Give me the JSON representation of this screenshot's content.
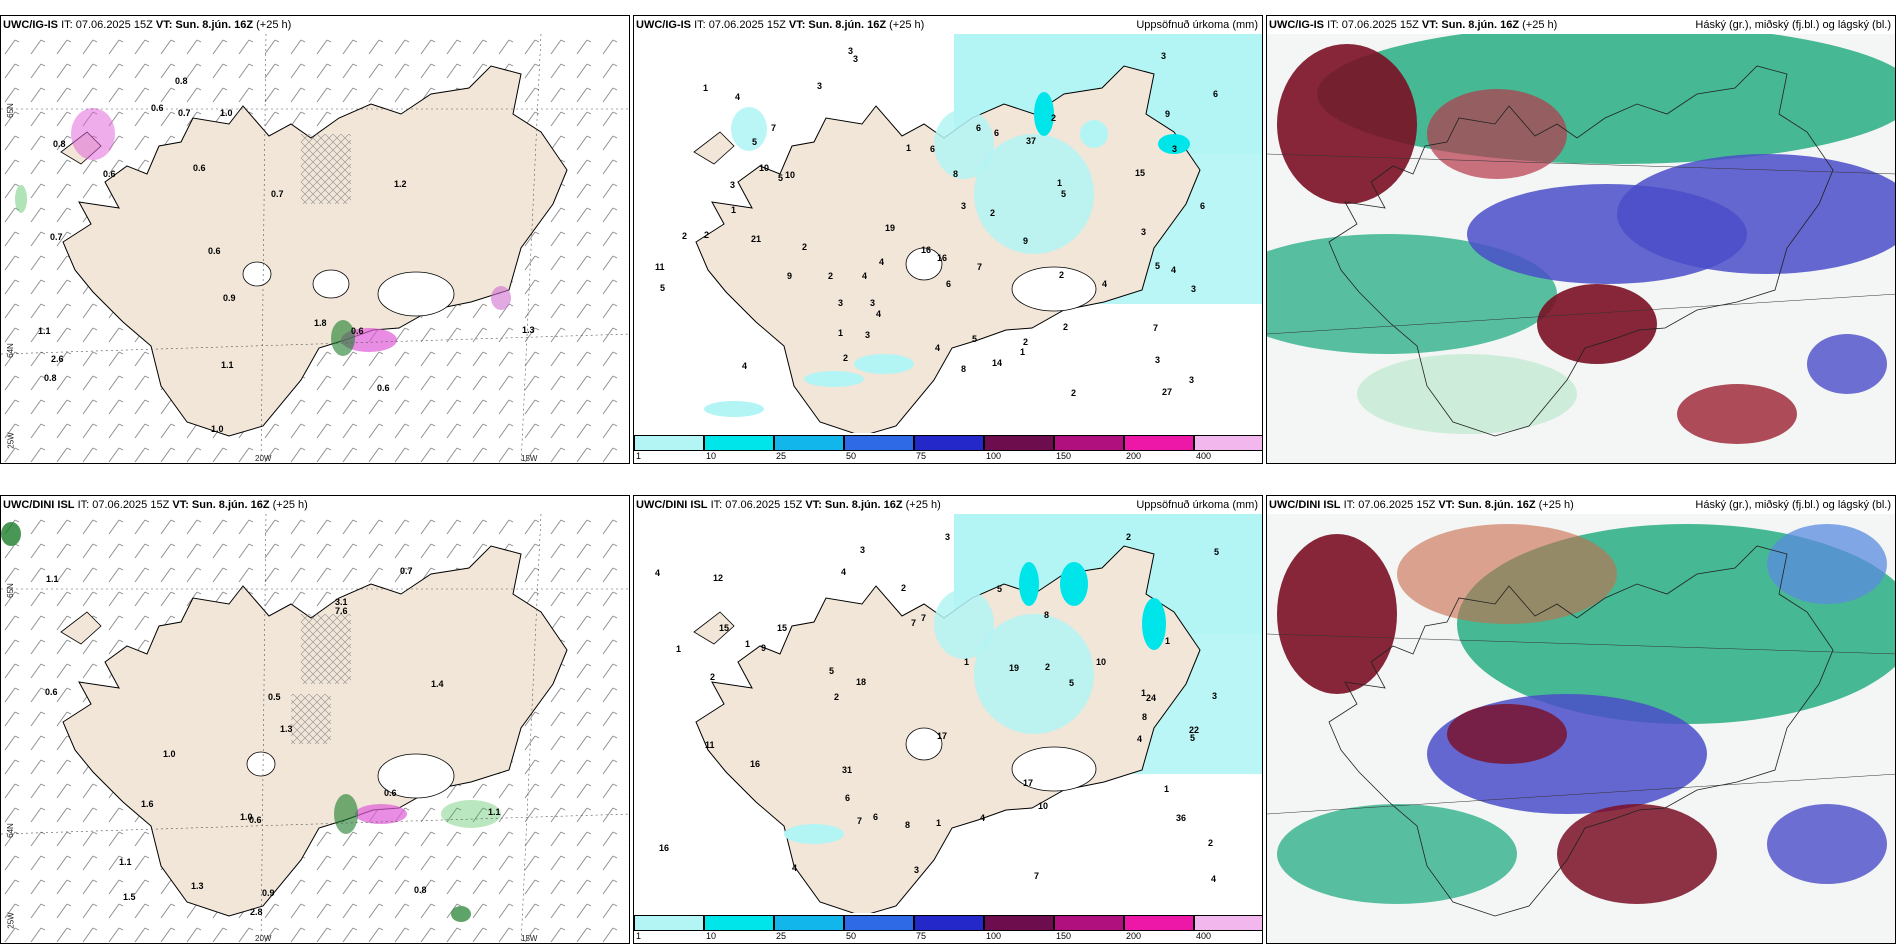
{
  "panels": [
    {
      "id": "wind-ig",
      "model": "UWC/IG-IS",
      "it": "IT: 07.06.2025 15Z",
      "vt": "VT: Sun. 8.jún. 16Z",
      "lead": "(+25 h)",
      "right": ""
    },
    {
      "id": "precip-ig",
      "model": "UWC/IG-IS",
      "it": "IT: 07.06.2025 15Z",
      "vt": "VT: Sun. 8.jún. 16Z",
      "lead": "(+25 h)",
      "right": "Uppsöfnuð úrkoma (mm)"
    },
    {
      "id": "cloud-ig",
      "model": "UWC/IG-IS",
      "it": "IT: 07.06.2025 15Z",
      "vt": "VT: Sun. 8.jún. 16Z",
      "lead": "(+25 h)",
      "right": "Háský (gr.), miðský (fj.bl.) og lágský (bl.)"
    },
    {
      "id": "wind-dini",
      "model": "UWC/DINI ISL",
      "it": "IT: 07.06.2025 15Z",
      "vt": "VT: Sun. 8.jún. 16Z",
      "lead": "(+25 h)",
      "right": ""
    },
    {
      "id": "precip-dini",
      "model": "UWC/DINI ISL",
      "it": "IT: 07.06.2025 15Z",
      "vt": "VT: Sun. 8.jún. 16Z",
      "lead": "(+25 h)",
      "right": "Uppsöfnuð úrkoma (mm)"
    },
    {
      "id": "cloud-dini",
      "model": "UWC/DINI ISL",
      "it": "IT: 07.06.2025 15Z",
      "vt": "VT: Sun. 8.jún. 16Z",
      "lead": "(+25 h)",
      "right": "Háský (gr.), miðský (fj.bl.) og lágský (bl.)"
    }
  ],
  "axis_labels": {
    "lat1": "65N",
    "lat2": "64N",
    "lon1": "20W",
    "lon2": "15W",
    "lon3": "25W"
  },
  "legend": {
    "ticks": [
      "1",
      "10",
      "25",
      "50",
      "75",
      "100",
      "150",
      "200",
      "400"
    ],
    "colors": [
      "#b3f5f5",
      "#00e5ea",
      "#12b6ea",
      "#2f6ae6",
      "#2528c8",
      "#6e0d4e",
      "#b0107e",
      "#ee18a8",
      "#f2b8ee"
    ]
  },
  "colors": {
    "land": "#f1e6d8",
    "precip_light": "#b3f5f5",
    "precip_mid": "#00e5ea",
    "cloud_high": "#1aa97a",
    "cloud_mid": "#4a4ec8",
    "cloud_low": "#7a0f24"
  },
  "wind_ig_values": [
    "0.6",
    "0.7",
    "0.6",
    "0.8",
    "0.8",
    "0.8",
    "1.8",
    "2.6",
    "1.0",
    "0.6",
    "0.9",
    "0.7",
    "1.1",
    "1.0",
    "0.6",
    "1.3",
    "0.6",
    "0.7",
    "1.1",
    "0.6",
    "1.2"
  ],
  "precip_ig_values": [
    "3",
    "4",
    "4",
    "6",
    "6",
    "5",
    "4",
    "1",
    "2",
    "2",
    "1",
    "2",
    "2",
    "1",
    "3",
    "3",
    "3",
    "16",
    "37",
    "21",
    "15",
    "16",
    "8",
    "6",
    "5",
    "5",
    "7",
    "4",
    "7",
    "27",
    "9",
    "4",
    "3",
    "11",
    "9",
    "7",
    "2",
    "5",
    "3",
    "5",
    "5",
    "6",
    "2",
    "1",
    "1",
    "3",
    "2",
    "2",
    "2",
    "3",
    "4",
    "2",
    "2",
    "3",
    "10",
    "10",
    "8",
    "14",
    "6",
    "3",
    "3",
    "4",
    "3",
    "4",
    "3",
    "9",
    "19",
    "6",
    "3",
    "1"
  ],
  "wind_dini_values": [
    "0.5",
    "0.6",
    "0.6",
    "1.1",
    "0.9",
    "0.6",
    "1.0",
    "0.8",
    "3.1",
    "1.1",
    "1.6",
    "1.3",
    "1.4",
    "1.0",
    "0.7",
    "2.8",
    "1.1",
    "7.6",
    "1.5",
    "1.3"
  ],
  "precip_dini_values": [
    "2",
    "4",
    "4",
    "1",
    "2",
    "1",
    "3",
    "4",
    "8",
    "19",
    "36",
    "18",
    "17",
    "24",
    "22",
    "10",
    "16",
    "17",
    "31",
    "5",
    "6",
    "7",
    "5",
    "5",
    "11",
    "12",
    "7",
    "2",
    "3",
    "4",
    "5",
    "8",
    "8",
    "6",
    "15",
    "7",
    "3",
    "2",
    "9",
    "7",
    "4",
    "2",
    "1",
    "1",
    "1",
    "5",
    "10",
    "3",
    "15",
    "16",
    "2",
    "4",
    "1",
    "1"
  ]
}
